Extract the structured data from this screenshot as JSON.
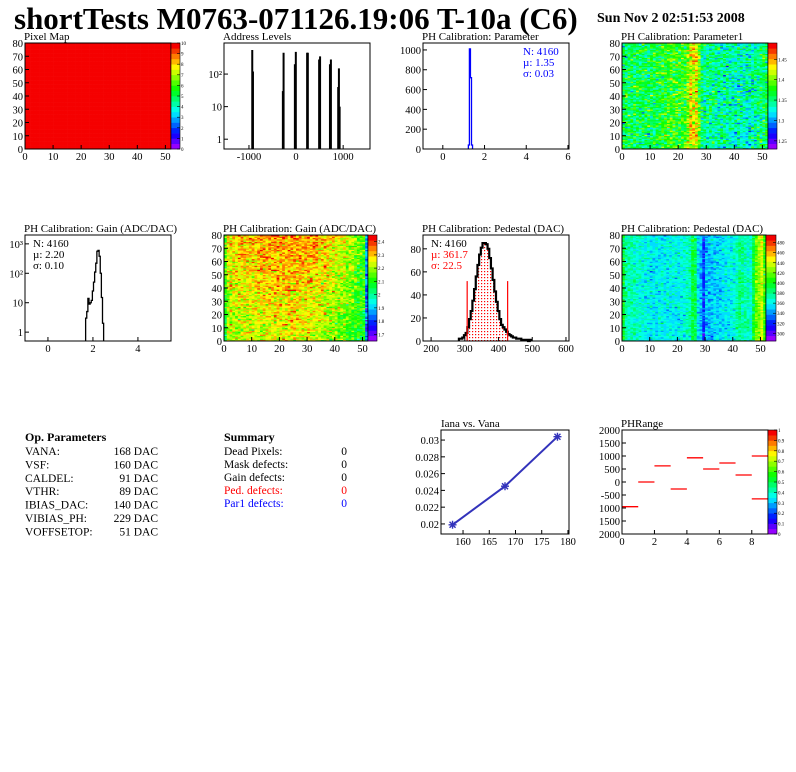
{
  "header": {
    "title": "shortTests M0763-071126.19:06 T-10a (C6)",
    "date": "Sun Nov  2 02:51:53 2008"
  },
  "op_parameters": {
    "heading": "Op. Parameters",
    "rows": [
      {
        "name": "VANA:",
        "value": "168 DAC"
      },
      {
        "name": "VSF:",
        "value": "160 DAC"
      },
      {
        "name": "CALDEL:",
        "value": "91 DAC"
      },
      {
        "name": "VTHR:",
        "value": "89 DAC"
      },
      {
        "name": "IBIAS_DAC:",
        "value": "140 DAC"
      },
      {
        "name": "VIBIAS_PH:",
        "value": "229 DAC"
      },
      {
        "name": "VOFFSETOP:",
        "value": "51 DAC"
      }
    ]
  },
  "summary": {
    "heading": "Summary",
    "rows": [
      {
        "name": "Dead Pixels:",
        "value": "0",
        "color": "#000000"
      },
      {
        "name": "Mask defects:",
        "value": "0",
        "color": "#000000"
      },
      {
        "name": "Gain defects:",
        "value": "0",
        "color": "#000000"
      },
      {
        "name": "Ped. defects:",
        "value": "0",
        "color": "#ff0000"
      },
      {
        "name": "Par1 defects:",
        "value": "0",
        "color": "#0000ff"
      }
    ]
  },
  "chart_data": [
    {
      "type": "heatmap",
      "title": "Pixel Map",
      "xlim": [
        0,
        52
      ],
      "ylim": [
        0,
        80
      ],
      "zlim": [
        0,
        10
      ],
      "xticks": [
        0,
        10,
        20,
        30,
        40,
        50
      ],
      "yticks": [
        0,
        10,
        20,
        30,
        40,
        50,
        60,
        70,
        80
      ],
      "zticks": [
        0,
        1,
        2,
        3,
        4,
        5,
        6,
        7,
        8,
        9,
        10
      ],
      "column_profile": [
        [
          0,
          10
        ],
        [
          51,
          10
        ]
      ],
      "noise": 0
    },
    {
      "type": "bar",
      "title": "Address Levels",
      "ylog": true,
      "xlim": [
        -1530,
        1570
      ],
      "ylim": [
        0.5,
        900
      ],
      "xticks": [
        -1000,
        0,
        1000
      ],
      "yticks": [
        1,
        10,
        100
      ],
      "ytick_labels": [
        "1",
        "10",
        "10²"
      ],
      "x": [
        -930,
        -915,
        -280,
        -265,
        -25,
        -5,
        235,
        250,
        490,
        510,
        720,
        740,
        895,
        910,
        925
      ],
      "values": [
        550,
        120,
        30,
        450,
        200,
        480,
        450,
        450,
        280,
        350,
        200,
        280,
        40,
        150,
        10
      ],
      "color": "#000000"
    },
    {
      "type": "bar",
      "title": "PH Calibration: Parameter",
      "xlim": [
        -0.95,
        6.05
      ],
      "ylim": [
        0,
        1070
      ],
      "xticks": [
        0,
        2,
        4,
        6
      ],
      "yticks": [
        0,
        200,
        400,
        600,
        800,
        1000
      ],
      "bin_width": 0.05,
      "x": [
        1.25,
        1.3,
        1.35,
        1.4
      ],
      "values": [
        40,
        1010,
        720,
        40
      ],
      "color": "#0000ff",
      "stats": [
        "N: 4160",
        "µ: 1.35",
        "σ: 0.03"
      ],
      "stats_color": "#0000ff"
    },
    {
      "type": "heatmap",
      "title": "PH Calibration: Parameter1",
      "xlim": [
        0,
        52
      ],
      "ylim": [
        0,
        80
      ],
      "zlim": [
        1.23,
        1.49
      ],
      "xticks": [
        0,
        10,
        20,
        30,
        40,
        50
      ],
      "yticks": [
        0,
        10,
        20,
        30,
        40,
        50,
        60,
        70,
        80
      ],
      "zticks": [
        1.25,
        1.3,
        1.35,
        1.4,
        1.45
      ],
      "column_profile": [
        [
          0,
          1.36
        ],
        [
          10,
          1.36
        ],
        [
          16,
          1.38
        ],
        [
          22,
          1.38
        ],
        [
          24,
          1.43
        ],
        [
          26,
          1.43
        ],
        [
          28,
          1.35
        ],
        [
          35,
          1.34
        ],
        [
          45,
          1.33
        ],
        [
          51,
          1.36
        ]
      ],
      "noise": 0.025
    },
    {
      "type": "line",
      "title": "PH Calibration: Gain (ADC/DAC)",
      "ylog": true,
      "xlim": [
        -1.02,
        5.47
      ],
      "ylim": [
        0.5,
        2000
      ],
      "xticks": [
        0,
        2,
        4
      ],
      "yticks": [
        1,
        10,
        100,
        1000
      ],
      "ytick_labels": [
        "1",
        "10",
        "10²",
        "10³"
      ],
      "bin_width": 0.05,
      "x": [
        1.7,
        1.75,
        1.8,
        1.85,
        1.9,
        1.95,
        2.0,
        2.05,
        2.1,
        2.15,
        2.2,
        2.25,
        2.3,
        2.35,
        2.4,
        2.45
      ],
      "values": [
        3,
        5,
        14,
        9,
        10,
        12,
        25,
        50,
        110,
        220,
        560,
        600,
        380,
        100,
        15,
        2
      ],
      "color": "#000000",
      "stats": [
        "N: 4160",
        "µ: 2.20",
        "σ: 0.10"
      ],
      "stats_color": "#000000"
    },
    {
      "type": "heatmap",
      "title": "PH Calibration: Gain (ADC/DAC)",
      "xlim": [
        0,
        52
      ],
      "ylim": [
        0,
        80
      ],
      "zlim": [
        1.65,
        2.45
      ],
      "xticks": [
        0,
        10,
        20,
        30,
        40,
        50
      ],
      "yticks": [
        0,
        10,
        20,
        30,
        40,
        50,
        60,
        70,
        80
      ],
      "zticks": [
        1.7,
        1.8,
        1.9,
        2,
        2.1,
        2.2,
        2.3,
        2.4
      ],
      "column_profile": [
        [
          0,
          2.12
        ],
        [
          1,
          2.25
        ],
        [
          15,
          2.3
        ],
        [
          25,
          2.31
        ],
        [
          35,
          2.27
        ],
        [
          45,
          2.18
        ],
        [
          50,
          2.12
        ],
        [
          51,
          1.85
        ]
      ],
      "row_slope": 0.0012,
      "noise": 0.06
    },
    {
      "type": "bar",
      "title": "PH Calibration: Pedestal (DAC)",
      "xlim": [
        176,
        609
      ],
      "ylim": [
        0,
        92
      ],
      "xticks": [
        200,
        300,
        400,
        500,
        600
      ],
      "yticks": [
        0,
        20,
        40,
        60,
        80
      ],
      "bin_width": 5,
      "x": [
        285,
        290,
        295,
        300,
        305,
        310,
        315,
        320,
        325,
        330,
        335,
        340,
        345,
        350,
        355,
        360,
        365,
        370,
        375,
        380,
        385,
        390,
        395,
        400,
        405,
        410,
        415,
        420,
        425,
        430,
        435,
        440,
        445,
        450,
        455,
        460,
        465,
        470,
        475,
        480,
        485,
        490,
        495
      ],
      "values": [
        2,
        2,
        3,
        5,
        7,
        12,
        19,
        26,
        35,
        45,
        56,
        66,
        75,
        81,
        85,
        85,
        84,
        80,
        72,
        63,
        53,
        43,
        34,
        26,
        19,
        14,
        12,
        10,
        8,
        6,
        5,
        4,
        3,
        3,
        2,
        2,
        2,
        1,
        1,
        1,
        1,
        0,
        1
      ],
      "color": "#000000",
      "fill_color": "#ff0000",
      "cut_lines": [
        307,
        427
      ],
      "cut_height": 52,
      "cut_color": "#ff0000",
      "stats": [
        "N: 4160",
        "µ: 361.7",
        "σ: 22.5"
      ],
      "stats_colors": [
        "#000000",
        "#ff0000",
        "#ff0000"
      ]
    },
    {
      "type": "heatmap",
      "title": "PH Calibration: Pedestal (DAC)",
      "xlim": [
        0,
        52
      ],
      "ylim": [
        0,
        80
      ],
      "zlim": [
        285,
        495
      ],
      "xticks": [
        0,
        10,
        20,
        30,
        40,
        50
      ],
      "yticks": [
        0,
        10,
        20,
        30,
        40,
        50,
        60,
        70,
        80
      ],
      "zticks": [
        300,
        320,
        340,
        360,
        380,
        400,
        420,
        440,
        460,
        480
      ],
      "column_profile": [
        [
          0,
          395
        ],
        [
          1,
          375
        ],
        [
          10,
          358
        ],
        [
          20,
          360
        ],
        [
          24,
          370
        ],
        [
          25,
          392
        ],
        [
          26,
          388
        ],
        [
          27,
          355
        ],
        [
          28,
          345
        ],
        [
          29,
          320
        ],
        [
          30,
          345
        ],
        [
          40,
          362
        ],
        [
          42,
          380
        ],
        [
          46,
          365
        ],
        [
          48,
          420
        ],
        [
          50,
          440
        ],
        [
          51,
          410
        ]
      ],
      "noise": 10
    },
    {
      "type": "line",
      "title": "Iana vs. Vana",
      "xlim": [
        155.8,
        180.2
      ],
      "ylim": [
        0.0188,
        0.0312
      ],
      "xticks": [
        160,
        165,
        170,
        175,
        180
      ],
      "yticks": [
        0.02,
        0.022,
        0.024,
        0.026,
        0.028,
        0.03
      ],
      "x": [
        158,
        168,
        178
      ],
      "values": [
        0.0199,
        0.0245,
        0.0304
      ],
      "color": "#3333bb"
    },
    {
      "type": "heatmap",
      "title": "PHRange",
      "xlim": [
        0,
        9
      ],
      "ylim": [
        -2000,
        2000
      ],
      "zlim": [
        0,
        1
      ],
      "xticks": [
        0,
        2,
        4,
        6,
        8
      ],
      "yticks": [
        2000,
        1500,
        1000,
        500,
        0,
        -500,
        -1000,
        -1500,
        -2000
      ],
      "ytick_labels": [
        "2000",
        "1500",
        "1000",
        "500",
        "0",
        "-500",
        "1000",
        "1500",
        "2000"
      ],
      "zticks": [
        0,
        0.1,
        0.2,
        0.3,
        0.4,
        0.5,
        0.6,
        0.7,
        0.8,
        0.9,
        1
      ],
      "segments": [
        [
          0,
          1,
          -950
        ],
        [
          1,
          2,
          0
        ],
        [
          2,
          3,
          620
        ],
        [
          3,
          4,
          -270
        ],
        [
          4,
          5,
          930
        ],
        [
          5,
          6,
          500
        ],
        [
          6,
          7,
          730
        ],
        [
          7,
          8,
          270
        ],
        [
          8,
          9,
          1000
        ],
        [
          8,
          9,
          -650
        ]
      ],
      "color": "#ff0000"
    }
  ]
}
